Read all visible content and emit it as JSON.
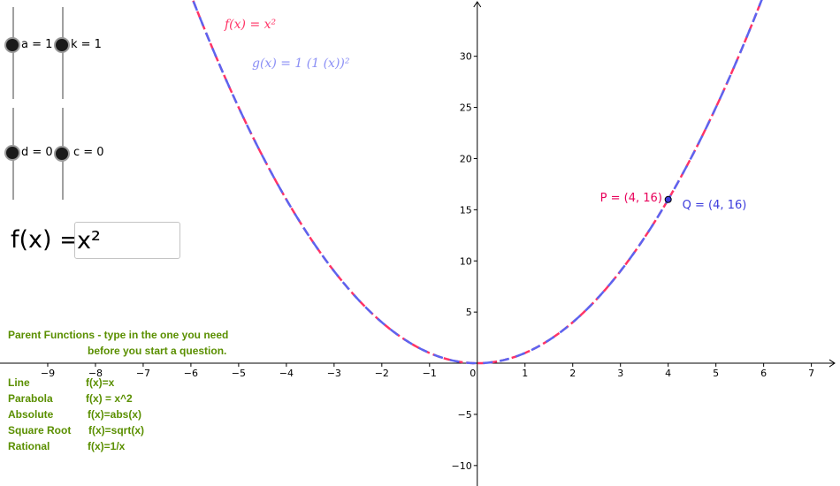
{
  "sliders": [
    {
      "name": "a",
      "label": "a = 1",
      "value": 1
    },
    {
      "name": "k",
      "label": "k = 1",
      "value": 1
    },
    {
      "name": "d",
      "label": "d = 0",
      "value": 0
    },
    {
      "name": "c",
      "label": "c = 0",
      "value": 0
    }
  ],
  "input": {
    "label": "f(x) =",
    "value": "x²"
  },
  "parent_functions": {
    "title_line1": "Parent Functions - type in the one you need",
    "title_line2": "before you start a question.",
    "rows": [
      {
        "name": "Line",
        "formula": "f(x)=x"
      },
      {
        "name": "Parabola",
        "formula": "f(x) = x^2"
      },
      {
        "name": "Absolute",
        "formula": "f(x)=abs(x)"
      },
      {
        "name": "Square Root",
        "formula": "f(x)=sqrt(x)"
      },
      {
        "name": "Rational",
        "formula": "f(x)=1/x"
      }
    ]
  },
  "graph": {
    "f_label": "f(x)  =  x²",
    "g_label": "g(x)  =  1  (1  (x))²",
    "p_label": "P = (4, 16)",
    "q_label": "Q = (4, 16)",
    "f_color": "#ff3366",
    "g_color": "#5c64f0",
    "p_color": "#e8005a",
    "q_color": "#3c3cdc",
    "point": {
      "x": 4,
      "y": 16
    },
    "xlim": [
      -10,
      7.6
    ],
    "ylim": [
      -12,
      35.5
    ],
    "x_ticks": [
      -9,
      -8,
      -7,
      -6,
      -5,
      -4,
      -3,
      -2,
      -1,
      0,
      1,
      2,
      3,
      4,
      5,
      6,
      7
    ],
    "y_ticks": [
      -10,
      -5,
      5,
      10,
      15,
      20,
      25,
      30
    ],
    "x_tick_labels": [
      "−9",
      "−8",
      "−7",
      "−6",
      "−5",
      "−4",
      "−3",
      "−2",
      "−1",
      "0",
      "1",
      "2",
      "3",
      "4",
      "5",
      "6",
      "7"
    ],
    "y_tick_labels": [
      "−10",
      "−5",
      "5",
      "10",
      "15",
      "20",
      "25",
      "30"
    ]
  }
}
